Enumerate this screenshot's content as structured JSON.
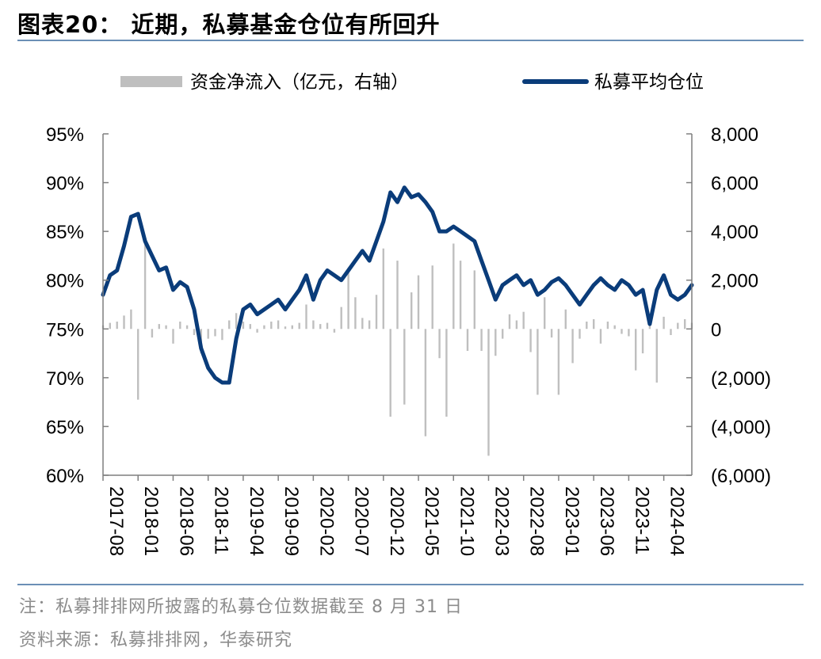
{
  "header": {
    "title": "图表20： 近期，私募基金仓位有所回升"
  },
  "footer": {
    "note": "注：私募排排网所披露的私募仓位数据截至 8 月 31 日",
    "source": "资料来源：私募排排网，华泰研究"
  },
  "colors": {
    "line": "#0a3c7a",
    "bar": "#bfbfbf",
    "axis": "#7f7f7f",
    "rule": "#6b8fb6"
  },
  "chart_data": {
    "type": "bar+line",
    "title": "近期，私募基金仓位有所回升",
    "legend": [
      "资金净流入（亿元，右轴）",
      "私募平均仓位"
    ],
    "legend_position": "top",
    "grid": false,
    "x_ticks": [
      "2017-08",
      "2018-01",
      "2018-06",
      "2018-11",
      "2019-04",
      "2019-09",
      "2020-02",
      "2020-07",
      "2020-12",
      "2021-05",
      "2021-10",
      "2022-03",
      "2022-08",
      "2023-01",
      "2023-06",
      "2023-11",
      "2024-04"
    ],
    "x_range": [
      "2017-08",
      "2024-08"
    ],
    "y_left": {
      "label": "私募平均仓位",
      "ticks": [
        "95%",
        "90%",
        "85%",
        "80%",
        "75%",
        "70%",
        "65%",
        "60%"
      ],
      "range": [
        60,
        95
      ]
    },
    "y_right": {
      "label": "资金净流入（亿元）",
      "ticks": [
        "8,000",
        "6,000",
        "4,000",
        "2,000",
        "0",
        "(2,000)",
        "(4,000)",
        "(6,000)"
      ],
      "range": [
        -6000,
        8000
      ]
    },
    "series": [
      {
        "name": "私募平均仓位",
        "type": "line",
        "axis": "left",
        "points": [
          [
            "2017-08",
            78.5
          ],
          [
            "2017-09",
            80.5
          ],
          [
            "2017-10",
            81.0
          ],
          [
            "2017-11",
            83.5
          ],
          [
            "2017-12",
            86.5
          ],
          [
            "2018-01",
            86.8
          ],
          [
            "2018-02",
            84.0
          ],
          [
            "2018-03",
            82.5
          ],
          [
            "2018-04",
            81.0
          ],
          [
            "2018-05",
            81.3
          ],
          [
            "2018-06",
            79.0
          ],
          [
            "2018-07",
            79.8
          ],
          [
            "2018-08",
            79.3
          ],
          [
            "2018-09",
            77.0
          ],
          [
            "2018-10",
            73.0
          ],
          [
            "2018-11",
            71.0
          ],
          [
            "2018-12",
            70.0
          ],
          [
            "2019-01",
            69.5
          ],
          [
            "2019-02",
            69.5
          ],
          [
            "2019-03",
            74.0
          ],
          [
            "2019-04",
            77.0
          ],
          [
            "2019-05",
            77.5
          ],
          [
            "2019-06",
            76.5
          ],
          [
            "2019-07",
            77.0
          ],
          [
            "2019-08",
            77.5
          ],
          [
            "2019-09",
            78.0
          ],
          [
            "2019-10",
            77.0
          ],
          [
            "2019-11",
            78.0
          ],
          [
            "2019-12",
            79.0
          ],
          [
            "2020-01",
            80.5
          ],
          [
            "2020-02",
            78.0
          ],
          [
            "2020-03",
            80.0
          ],
          [
            "2020-04",
            81.0
          ],
          [
            "2020-05",
            80.5
          ],
          [
            "2020-06",
            80.0
          ],
          [
            "2020-07",
            81.0
          ],
          [
            "2020-08",
            82.0
          ],
          [
            "2020-09",
            83.0
          ],
          [
            "2020-10",
            82.0
          ],
          [
            "2020-11",
            84.0
          ],
          [
            "2020-12",
            86.0
          ],
          [
            "2021-01",
            89.0
          ],
          [
            "2021-02",
            88.0
          ],
          [
            "2021-03",
            89.5
          ],
          [
            "2021-04",
            88.5
          ],
          [
            "2021-05",
            88.8
          ],
          [
            "2021-06",
            88.0
          ],
          [
            "2021-07",
            87.0
          ],
          [
            "2021-08",
            85.0
          ],
          [
            "2021-09",
            85.0
          ],
          [
            "2021-10",
            85.5
          ],
          [
            "2021-11",
            85.0
          ],
          [
            "2021-12",
            84.5
          ],
          [
            "2022-01",
            84.0
          ],
          [
            "2022-02",
            82.0
          ],
          [
            "2022-03",
            80.0
          ],
          [
            "2022-04",
            78.0
          ],
          [
            "2022-05",
            79.5
          ],
          [
            "2022-06",
            80.0
          ],
          [
            "2022-07",
            80.5
          ],
          [
            "2022-08",
            79.5
          ],
          [
            "2022-09",
            80.0
          ],
          [
            "2022-10",
            78.5
          ],
          [
            "2022-11",
            79.0
          ],
          [
            "2022-12",
            79.8
          ],
          [
            "2023-01",
            80.2
          ],
          [
            "2023-02",
            79.5
          ],
          [
            "2023-03",
            78.5
          ],
          [
            "2023-04",
            77.5
          ],
          [
            "2023-05",
            78.5
          ],
          [
            "2023-06",
            79.5
          ],
          [
            "2023-07",
            80.2
          ],
          [
            "2023-08",
            79.5
          ],
          [
            "2023-09",
            79.0
          ],
          [
            "2023-10",
            80.0
          ],
          [
            "2023-11",
            79.5
          ],
          [
            "2023-12",
            78.5
          ],
          [
            "2024-01",
            79.0
          ],
          [
            "2024-02",
            75.5
          ],
          [
            "2024-03",
            79.0
          ],
          [
            "2024-04",
            80.5
          ],
          [
            "2024-05",
            78.5
          ],
          [
            "2024-06",
            78.0
          ],
          [
            "2024-07",
            78.5
          ],
          [
            "2024-08",
            79.5
          ]
        ]
      },
      {
        "name": "资金净流入（亿元，右轴）",
        "type": "bar",
        "axis": "right",
        "points": [
          [
            "2017-08",
            150
          ],
          [
            "2017-09",
            250
          ],
          [
            "2017-10",
            300
          ],
          [
            "2017-11",
            550
          ],
          [
            "2017-12",
            800
          ],
          [
            "2018-01",
            -2900
          ],
          [
            "2018-02",
            3700
          ],
          [
            "2018-03",
            -350
          ],
          [
            "2018-04",
            200
          ],
          [
            "2018-05",
            150
          ],
          [
            "2018-06",
            -600
          ],
          [
            "2018-07",
            300
          ],
          [
            "2018-08",
            150
          ],
          [
            "2018-09",
            -250
          ],
          [
            "2018-10",
            -1000
          ],
          [
            "2018-11",
            -400
          ],
          [
            "2018-12",
            -300
          ],
          [
            "2019-01",
            -450
          ],
          [
            "2019-02",
            350
          ],
          [
            "2019-03",
            650
          ],
          [
            "2019-04",
            300
          ],
          [
            "2019-05",
            200
          ],
          [
            "2019-06",
            -150
          ],
          [
            "2019-07",
            150
          ],
          [
            "2019-08",
            300
          ],
          [
            "2019-09",
            350
          ],
          [
            "2019-10",
            100
          ],
          [
            "2019-11",
            150
          ],
          [
            "2019-12",
            250
          ],
          [
            "2020-01",
            1000
          ],
          [
            "2020-02",
            350
          ],
          [
            "2020-03",
            200
          ],
          [
            "2020-04",
            250
          ],
          [
            "2020-05",
            -150
          ],
          [
            "2020-06",
            900
          ],
          [
            "2020-07",
            2500
          ],
          [
            "2020-08",
            1300
          ],
          [
            "2020-09",
            450
          ],
          [
            "2020-10",
            350
          ],
          [
            "2020-11",
            1400
          ],
          [
            "2020-12",
            3300
          ],
          [
            "2021-01",
            -3600
          ],
          [
            "2021-02",
            2800
          ],
          [
            "2021-03",
            -3100
          ],
          [
            "2021-04",
            1500
          ],
          [
            "2021-05",
            2200
          ],
          [
            "2021-06",
            -4400
          ],
          [
            "2021-07",
            2600
          ],
          [
            "2021-08",
            -1200
          ],
          [
            "2021-09",
            -3600
          ],
          [
            "2021-10",
            3500
          ],
          [
            "2021-11",
            2800
          ],
          [
            "2021-12",
            -900
          ],
          [
            "2022-01",
            2400
          ],
          [
            "2022-02",
            -900
          ],
          [
            "2022-03",
            -5200
          ],
          [
            "2022-04",
            -1100
          ],
          [
            "2022-05",
            -400
          ],
          [
            "2022-06",
            600
          ],
          [
            "2022-07",
            350
          ],
          [
            "2022-08",
            700
          ],
          [
            "2022-09",
            -950
          ],
          [
            "2022-10",
            -2700
          ],
          [
            "2022-11",
            1300
          ],
          [
            "2022-12",
            -350
          ],
          [
            "2023-01",
            -2700
          ],
          [
            "2023-02",
            800
          ],
          [
            "2023-03",
            -1400
          ],
          [
            "2023-04",
            -400
          ],
          [
            "2023-05",
            300
          ],
          [
            "2023-06",
            400
          ],
          [
            "2023-07",
            -600
          ],
          [
            "2023-08",
            300
          ],
          [
            "2023-09",
            150
          ],
          [
            "2023-10",
            -200
          ],
          [
            "2023-11",
            -300
          ],
          [
            "2023-12",
            -1700
          ],
          [
            "2024-01",
            -1000
          ],
          [
            "2024-02",
            600
          ],
          [
            "2024-03",
            -2200
          ],
          [
            "2024-04",
            500
          ],
          [
            "2024-05",
            -250
          ],
          [
            "2024-06",
            250
          ],
          [
            "2024-07",
            400
          ],
          [
            "2024-08",
            250
          ]
        ]
      }
    ]
  }
}
